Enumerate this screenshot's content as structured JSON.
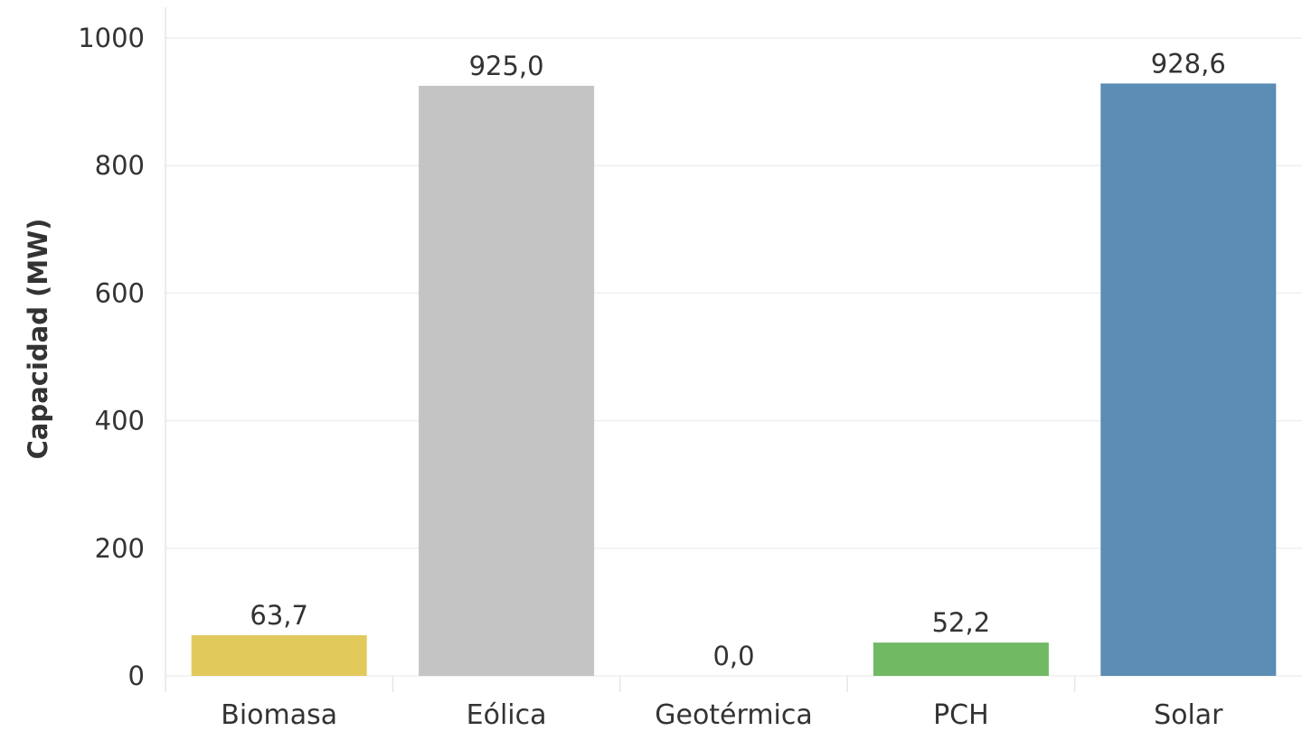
{
  "chart_data": {
    "type": "bar",
    "categories": [
      "Biomasa",
      "Eólica",
      "Geotérmica",
      "PCH",
      "Solar"
    ],
    "values": [
      63.7,
      925.0,
      0.0,
      52.2,
      928.6
    ],
    "value_labels": [
      "63,7",
      "925,0",
      "0,0",
      "52,2",
      "928,6"
    ],
    "colors": [
      "#e2c95c",
      "#c4c4c4",
      "#ffffff",
      "#71b963",
      "#5b8db5"
    ],
    "ylabel": "Capacidad (MW)",
    "xlabel": "",
    "ylim": [
      0,
      1000
    ],
    "yticks": [
      0,
      200,
      400,
      600,
      800,
      1000
    ],
    "ytick_labels": [
      "0",
      "200",
      "400",
      "600",
      "800",
      "1000"
    ],
    "grid": true,
    "legend": "none"
  }
}
